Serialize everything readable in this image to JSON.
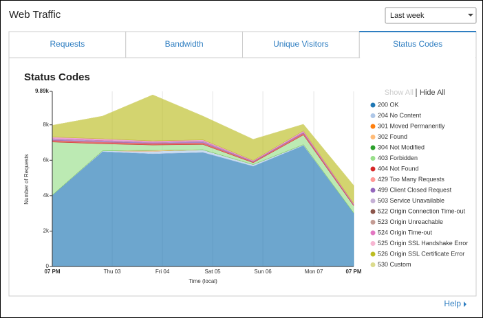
{
  "header": {
    "title": "Web Traffic",
    "range_select": "Last week"
  },
  "tabs": [
    "Requests",
    "Bandwidth",
    "Unique Visitors",
    "Status Codes"
  ],
  "legend_controls": {
    "show_all": "Show All",
    "hide_all": "Hide All"
  },
  "footer": {
    "help": "Help"
  },
  "chart_data": {
    "type": "stacked-area",
    "title": "Status Codes",
    "y_label": "Number of Requests",
    "x_label": "Time (local)",
    "x": [
      0,
      28,
      56,
      84,
      112,
      140,
      168
    ],
    "xlim": [
      0,
      168
    ],
    "xticks": [
      {
        "value": 0,
        "label": "07 PM"
      },
      {
        "value": 33.4,
        "label": "Thu 03"
      },
      {
        "value": 61.4,
        "label": "Fri 04"
      },
      {
        "value": 89.4,
        "label": "Sat 05"
      },
      {
        "value": 117.4,
        "label": "Sun 06"
      },
      {
        "value": 145.8,
        "label": "Mon 07"
      },
      {
        "value": 168,
        "label": "07 PM"
      }
    ],
    "ylim": [
      0,
      9890
    ],
    "yticks": [
      0,
      {
        "value": 2000,
        "label": "2k"
      },
      {
        "value": 4000,
        "label": "4k"
      },
      {
        "value": 6000,
        "label": "6k"
      },
      {
        "value": 8000,
        "label": "8k"
      },
      {
        "value": 9890,
        "label": "9.89k"
      }
    ],
    "grid": true,
    "series": [
      {
        "name": "200 OK",
        "color": "#1f77b4",
        "values": [
          4030,
          6480,
          6360,
          6440,
          5660,
          6830,
          3030
        ]
      },
      {
        "name": "204 No Content",
        "color": "#aec7e8",
        "values": [
          0,
          50,
          150,
          150,
          100,
          50,
          0
        ]
      },
      {
        "name": "301 Moved Permanently",
        "color": "#ff7f0e",
        "values": [
          0,
          0,
          0,
          0,
          0,
          0,
          0
        ]
      },
      {
        "name": "302 Found",
        "color": "#ffbb78",
        "values": [
          0,
          0,
          50,
          0,
          0,
          0,
          0
        ]
      },
      {
        "name": "304 Not Modified",
        "color": "#2ca02c",
        "values": [
          0,
          0,
          0,
          0,
          0,
          0,
          0
        ]
      },
      {
        "name": "403 Forbidden",
        "color": "#98df8a",
        "values": [
          3000,
          400,
          300,
          300,
          100,
          550,
          400
        ]
      },
      {
        "name": "404 Not Found",
        "color": "#d62728",
        "values": [
          100,
          100,
          100,
          100,
          50,
          100,
          50
        ]
      },
      {
        "name": "429 Too Many Requests",
        "color": "#ff9896",
        "values": [
          0,
          0,
          0,
          0,
          0,
          0,
          0
        ]
      },
      {
        "name": "499 Client Closed Request",
        "color": "#9467bd",
        "values": [
          80,
          80,
          50,
          80,
          30,
          50,
          30
        ]
      },
      {
        "name": "503 Service Unavailable",
        "color": "#c5b0d5",
        "values": [
          0,
          0,
          0,
          0,
          0,
          0,
          0
        ]
      },
      {
        "name": "522 Origin Connection Time-out",
        "color": "#8c564b",
        "values": [
          0,
          0,
          0,
          0,
          0,
          0,
          0
        ]
      },
      {
        "name": "523 Origin Unreachable",
        "color": "#c49c94",
        "values": [
          0,
          0,
          0,
          0,
          0,
          0,
          0
        ]
      },
      {
        "name": "524 Origin Time-out",
        "color": "#e377c2",
        "values": [
          100,
          100,
          80,
          80,
          50,
          80,
          50
        ]
      },
      {
        "name": "525 Origin SSL Handshake Error",
        "color": "#f7b6d2",
        "values": [
          0,
          0,
          0,
          0,
          0,
          0,
          0
        ]
      },
      {
        "name": "526 Origin SSL Certificate Error",
        "color": "#bcbd22",
        "values": [
          660,
          1280,
          2600,
          1340,
          1190,
          370,
          1020
        ]
      },
      {
        "name": "530 Custom",
        "color": "#dbdb8d",
        "values": [
          0,
          0,
          0,
          0,
          0,
          0,
          0
        ]
      }
    ]
  }
}
